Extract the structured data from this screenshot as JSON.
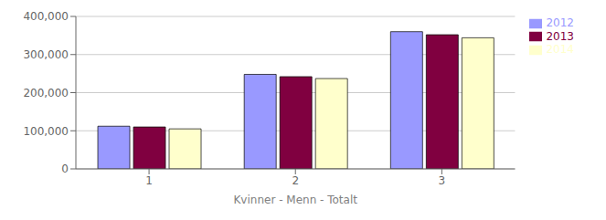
{
  "chart_data": {
    "type": "bar",
    "xlabel": "Kvinner - Menn - Totalt",
    "categories": [
      "1",
      "2",
      "3"
    ],
    "series": [
      {
        "name": "2012",
        "color": "#9999FF",
        "values": [
          112000,
          248000,
          360000
        ]
      },
      {
        "name": "2013",
        "color": "#800040",
        "values": [
          110000,
          242000,
          352000
        ]
      },
      {
        "name": "2014",
        "color": "#FFFFCC",
        "values": [
          105000,
          237000,
          344000
        ]
      }
    ],
    "ylim": [
      0,
      400000
    ],
    "yticks": [
      0,
      {
        "value": 100000,
        "label": "100,000"
      },
      {
        "value": 200000,
        "label": "200,000"
      },
      {
        "value": 300000,
        "label": "300,000"
      },
      {
        "value": 400000,
        "label": "400,000"
      }
    ],
    "grid": true,
    "legend": "right"
  }
}
